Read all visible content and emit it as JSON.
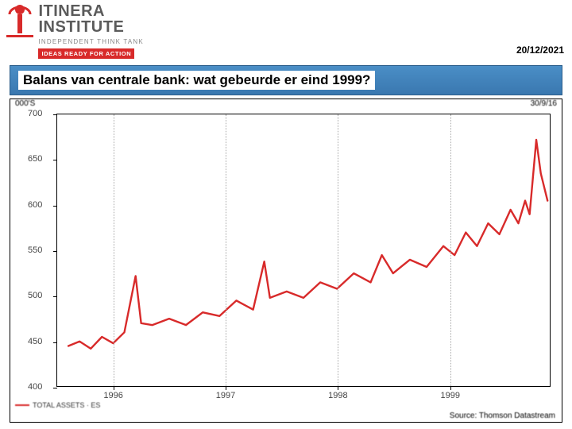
{
  "header": {
    "logo_title_1": "ITINERA",
    "logo_title_2": "INSTITUTE",
    "logo_sub": "INDEPENDENT THINK TANK",
    "logo_tagline": "IDEAS READY FOR ACTION",
    "date": "20/12/2021"
  },
  "slide": {
    "title": "Balans van centrale bank: wat gebeurde er eind 1999?"
  },
  "chart": {
    "type": "line",
    "y_unit_label": "000'S",
    "top_right_label": "30/9/16",
    "legend_label": "TOTAL ASSETS · ES",
    "source_label": "Source: Thomson Datastream",
    "line_color": "#d82a2a",
    "line_width": 2.4,
    "background_color": "#ffffff",
    "border_color": "#000000",
    "grid_color": "#aaaaaa",
    "label_color": "#444444",
    "label_fontsize": 11,
    "xlim": [
      1995.5,
      1999.9
    ],
    "ylim": [
      400,
      700
    ],
    "yticks": [
      400,
      450,
      500,
      550,
      600,
      650,
      700
    ],
    "xticks": [
      1996,
      1997,
      1998,
      1999
    ],
    "series": [
      {
        "x": 1995.6,
        "y": 445
      },
      {
        "x": 1995.7,
        "y": 450
      },
      {
        "x": 1995.8,
        "y": 442
      },
      {
        "x": 1995.9,
        "y": 455
      },
      {
        "x": 1996.0,
        "y": 448
      },
      {
        "x": 1996.1,
        "y": 460
      },
      {
        "x": 1996.2,
        "y": 522
      },
      {
        "x": 1996.25,
        "y": 470
      },
      {
        "x": 1996.35,
        "y": 468
      },
      {
        "x": 1996.5,
        "y": 475
      },
      {
        "x": 1996.65,
        "y": 468
      },
      {
        "x": 1996.8,
        "y": 482
      },
      {
        "x": 1996.95,
        "y": 478
      },
      {
        "x": 1997.1,
        "y": 495
      },
      {
        "x": 1997.25,
        "y": 485
      },
      {
        "x": 1997.35,
        "y": 538
      },
      {
        "x": 1997.4,
        "y": 498
      },
      {
        "x": 1997.55,
        "y": 505
      },
      {
        "x": 1997.7,
        "y": 498
      },
      {
        "x": 1997.85,
        "y": 515
      },
      {
        "x": 1998.0,
        "y": 508
      },
      {
        "x": 1998.15,
        "y": 525
      },
      {
        "x": 1998.3,
        "y": 515
      },
      {
        "x": 1998.4,
        "y": 545
      },
      {
        "x": 1998.5,
        "y": 525
      },
      {
        "x": 1998.65,
        "y": 540
      },
      {
        "x": 1998.8,
        "y": 532
      },
      {
        "x": 1998.95,
        "y": 555
      },
      {
        "x": 1999.05,
        "y": 545
      },
      {
        "x": 1999.15,
        "y": 570
      },
      {
        "x": 1999.25,
        "y": 555
      },
      {
        "x": 1999.35,
        "y": 580
      },
      {
        "x": 1999.45,
        "y": 568
      },
      {
        "x": 1999.55,
        "y": 595
      },
      {
        "x": 1999.62,
        "y": 580
      },
      {
        "x": 1999.68,
        "y": 605
      },
      {
        "x": 1999.72,
        "y": 590
      },
      {
        "x": 1999.78,
        "y": 672
      },
      {
        "x": 1999.82,
        "y": 635
      },
      {
        "x": 1999.88,
        "y": 605
      }
    ]
  }
}
